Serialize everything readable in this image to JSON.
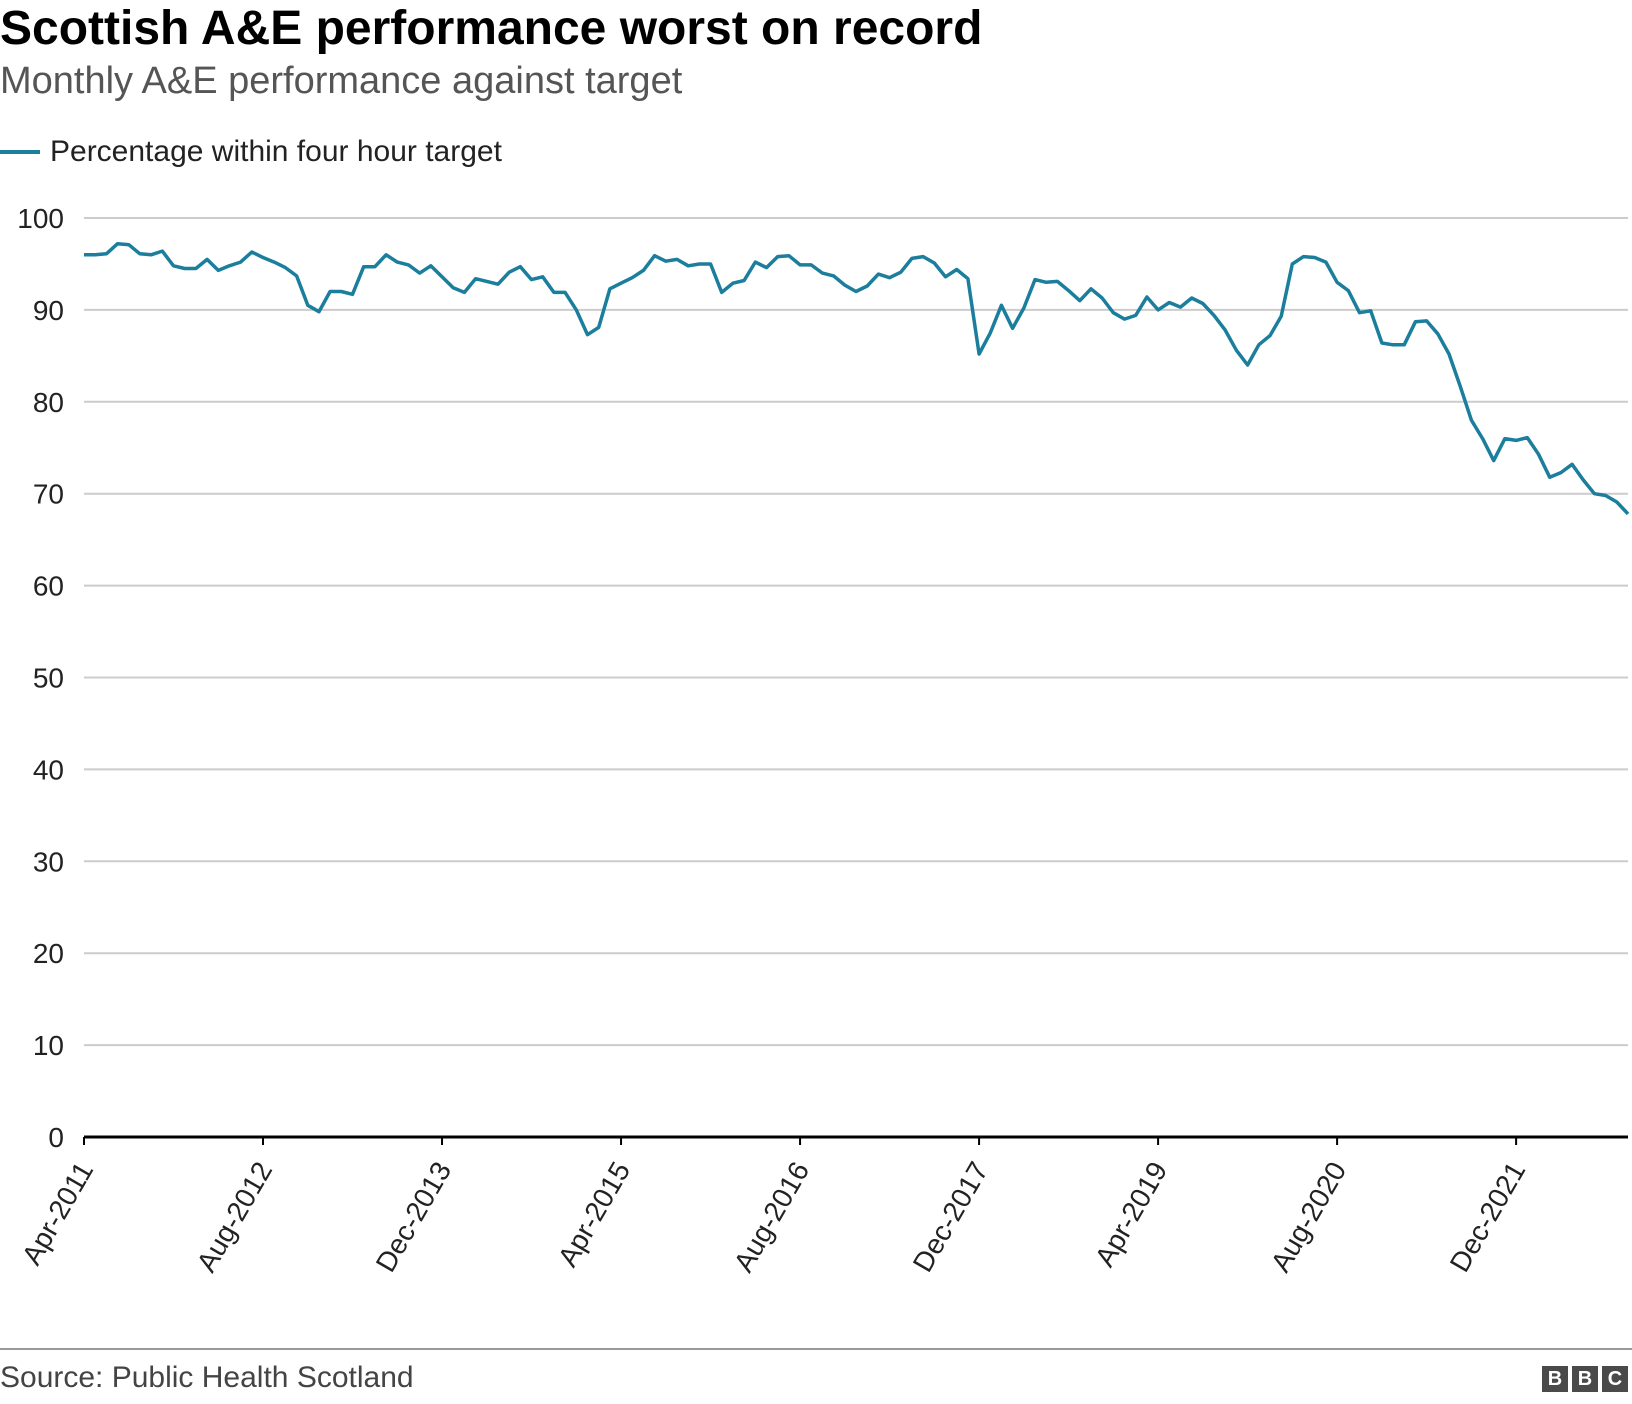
{
  "header": {
    "title": "Scottish A&E performance worst on record",
    "subtitle": "Monthly A&E performance against target"
  },
  "footer": {
    "source": "Source: Public Health Scotland",
    "logo_letters": [
      "B",
      "B",
      "C"
    ]
  },
  "colors": {
    "series": "#1a7e9c",
    "grid": "#cccccc",
    "baseline": "#000000"
  },
  "chart_data": {
    "type": "line",
    "legend_position": "top-left",
    "grid": true,
    "ylim": [
      0,
      100
    ],
    "y_ticks": [
      0,
      10,
      20,
      30,
      40,
      50,
      60,
      70,
      80,
      90,
      100
    ],
    "x_tick_labels": [
      "Apr-2011",
      "Aug-2012",
      "Dec-2013",
      "Apr-2015",
      "Aug-2016",
      "Dec-2017",
      "Apr-2019",
      "Aug-2020",
      "Dec-2021"
    ],
    "x_start": "Apr-2011",
    "x_end": "Oct-2022",
    "series": [
      {
        "name": "Percentage within four hour target",
        "values": [
          96.0,
          96.0,
          96.1,
          97.2,
          97.1,
          96.1,
          96.0,
          96.4,
          94.8,
          94.5,
          94.5,
          95.5,
          94.3,
          94.8,
          95.2,
          96.3,
          95.7,
          95.2,
          94.6,
          93.7,
          90.5,
          89.8,
          92.0,
          92.0,
          91.7,
          94.7,
          94.7,
          96.0,
          95.2,
          94.9,
          94.0,
          94.8,
          93.6,
          92.4,
          91.9,
          93.4,
          93.1,
          92.8,
          94.1,
          94.7,
          93.3,
          93.6,
          91.9,
          91.9,
          90.0,
          87.3,
          88.1,
          92.3,
          92.9,
          93.5,
          94.3,
          95.9,
          95.3,
          95.5,
          94.8,
          95.0,
          95.0,
          91.9,
          92.9,
          93.2,
          95.2,
          94.6,
          95.8,
          95.9,
          94.9,
          94.9,
          94.0,
          93.7,
          92.7,
          92.0,
          92.6,
          93.9,
          93.5,
          94.1,
          95.6,
          95.8,
          95.1,
          93.6,
          94.4,
          93.4,
          85.2,
          87.5,
          90.5,
          88.0,
          90.2,
          93.3,
          93.0,
          93.1,
          92.1,
          91.0,
          92.3,
          91.3,
          89.7,
          89.0,
          89.4,
          91.4,
          90.0,
          90.8,
          90.3,
          91.3,
          90.7,
          89.4,
          87.8,
          85.6,
          84.0,
          86.2,
          87.2,
          89.3,
          95.0,
          95.8,
          95.7,
          95.2,
          93.0,
          92.1,
          89.7,
          89.9,
          86.4,
          86.2,
          86.2,
          88.7,
          88.8,
          87.4,
          85.2,
          81.7,
          78.0,
          76.0,
          73.6,
          76.0,
          75.8,
          76.1,
          74.3,
          71.8,
          72.3,
          73.2,
          71.5,
          70.0,
          69.8,
          69.1,
          67.8
        ]
      }
    ]
  }
}
